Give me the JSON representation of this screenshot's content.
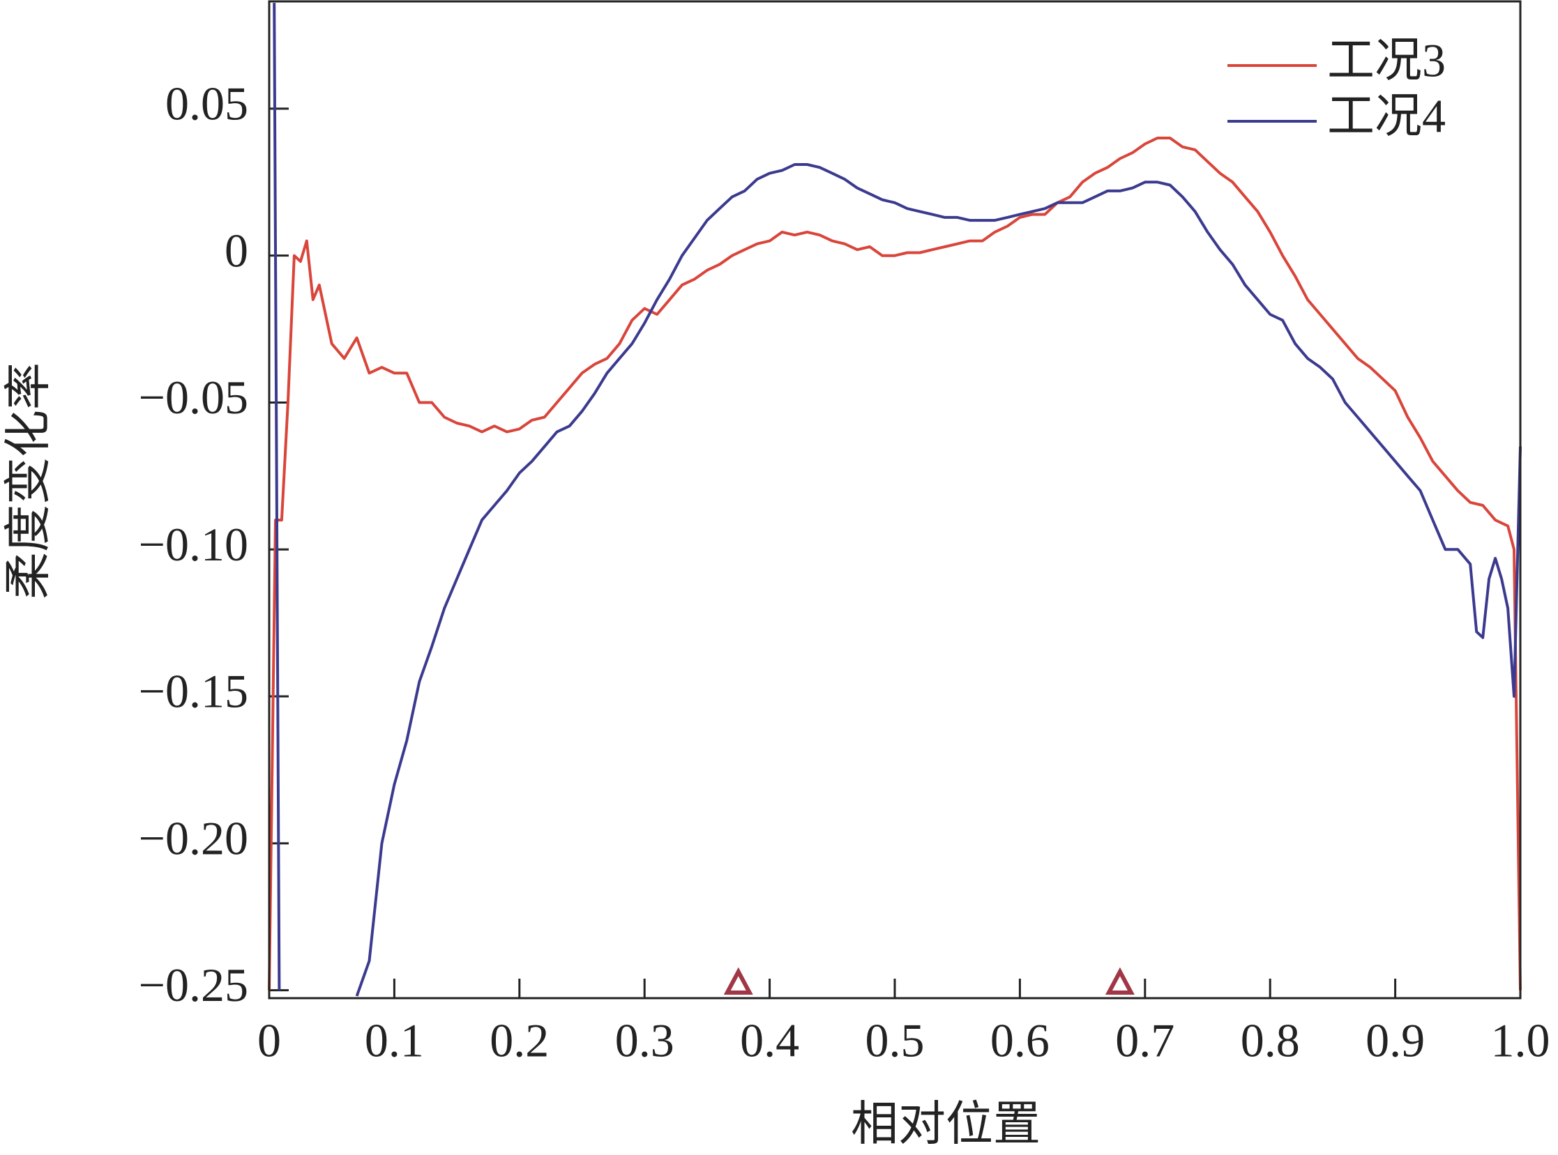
{
  "chart_data": {
    "type": "line",
    "x_label": "相对位置",
    "y_label": "柔度变化率",
    "xlim": [
      0,
      1
    ],
    "ylim": [
      -0.2527,
      0.0865
    ],
    "xticks": [
      0,
      0.1,
      0.2,
      0.3,
      0.4,
      0.5,
      0.6,
      0.7,
      0.8,
      0.9,
      {
        "value": 1,
        "label": "1.0"
      }
    ],
    "yticks": [
      {
        "value": -0.25,
        "label": "−0.25"
      },
      {
        "value": -0.2,
        "label": "−0.20"
      },
      {
        "value": -0.15,
        "label": "−0.15"
      },
      {
        "value": -0.1,
        "label": "−0.10"
      },
      {
        "value": -0.05,
        "label": "−0.05"
      },
      0,
      0.05
    ],
    "legend": "upper right",
    "markers_x": [
      0.375,
      0.68
    ],
    "marker_color": "#a03646",
    "series": [
      {
        "name": "工况3",
        "color": "#d9453a",
        "x": [
          0,
          0.005,
          0.01,
          0.015,
          0.02,
          0.025,
          0.03,
          0.035,
          0.04,
          0.05,
          0.06,
          0.07,
          0.08,
          0.09,
          0.1,
          0.11,
          0.12,
          0.13,
          0.14,
          0.15,
          0.16,
          0.17,
          0.18,
          0.19,
          0.2,
          0.21,
          0.22,
          0.23,
          0.24,
          0.25,
          0.26,
          0.27,
          0.28,
          0.29,
          0.3,
          0.31,
          0.32,
          0.33,
          0.34,
          0.35,
          0.36,
          0.37,
          0.38,
          0.39,
          0.4,
          0.41,
          0.42,
          0.43,
          0.44,
          0.45,
          0.46,
          0.47,
          0.48,
          0.49,
          0.5,
          0.51,
          0.52,
          0.53,
          0.54,
          0.55,
          0.56,
          0.57,
          0.58,
          0.59,
          0.6,
          0.61,
          0.62,
          0.63,
          0.64,
          0.65,
          0.66,
          0.67,
          0.68,
          0.69,
          0.7,
          0.71,
          0.72,
          0.73,
          0.74,
          0.75,
          0.76,
          0.77,
          0.78,
          0.79,
          0.8,
          0.81,
          0.82,
          0.83,
          0.84,
          0.85,
          0.86,
          0.87,
          0.88,
          0.89,
          0.9,
          0.91,
          0.92,
          0.93,
          0.94,
          0.95,
          0.96,
          0.97,
          0.98,
          0.99,
          0.995,
          1
        ],
        "values": [
          -0.25,
          -0.09,
          -0.09,
          -0.05,
          0,
          -0.002,
          0.005,
          -0.015,
          -0.01,
          -0.03,
          -0.035,
          -0.028,
          -0.04,
          -0.038,
          -0.04,
          -0.04,
          -0.05,
          -0.05,
          -0.055,
          -0.057,
          -0.058,
          -0.06,
          -0.058,
          -0.06,
          -0.059,
          -0.056,
          -0.055,
          -0.05,
          -0.045,
          -0.04,
          -0.037,
          -0.035,
          -0.03,
          -0.022,
          -0.018,
          -0.02,
          -0.015,
          -0.01,
          -0.008,
          -0.005,
          -0.003,
          0,
          0.002,
          0.004,
          0.005,
          0.008,
          0.007,
          0.008,
          0.007,
          0.005,
          0.004,
          0.002,
          0.003,
          0,
          0,
          0.001,
          0.001,
          0.002,
          0.003,
          0.004,
          0.005,
          0.005,
          0.008,
          0.01,
          0.013,
          0.014,
          0.014,
          0.018,
          0.02,
          0.025,
          0.028,
          0.03,
          0.033,
          0.035,
          0.038,
          0.04,
          0.04,
          0.037,
          0.036,
          0.032,
          0.028,
          0.025,
          0.02,
          0.015,
          0.008,
          0,
          -0.007,
          -0.015,
          -0.02,
          -0.025,
          -0.03,
          -0.035,
          -0.038,
          -0.042,
          -0.046,
          -0.055,
          -0.062,
          -0.07,
          -0.075,
          -0.08,
          -0.084,
          -0.085,
          -0.09,
          -0.092,
          -0.1,
          -0.25
        ]
      },
      {
        "name": "工况4",
        "color": "#3b3a8f",
        "x": [
          0.004,
          0.008,
          0.03,
          0.07,
          0.08,
          0.09,
          0.1,
          0.11,
          0.12,
          0.13,
          0.14,
          0.15,
          0.16,
          0.17,
          0.18,
          0.19,
          0.2,
          0.21,
          0.22,
          0.23,
          0.24,
          0.25,
          0.26,
          0.27,
          0.28,
          0.29,
          0.3,
          0.31,
          0.32,
          0.33,
          0.34,
          0.35,
          0.36,
          0.37,
          0.38,
          0.39,
          0.4,
          0.41,
          0.42,
          0.43,
          0.44,
          0.45,
          0.46,
          0.47,
          0.48,
          0.49,
          0.5,
          0.51,
          0.52,
          0.53,
          0.54,
          0.55,
          0.56,
          0.57,
          0.58,
          0.59,
          0.6,
          0.61,
          0.62,
          0.63,
          0.64,
          0.65,
          0.66,
          0.67,
          0.68,
          0.69,
          0.7,
          0.71,
          0.72,
          0.73,
          0.74,
          0.75,
          0.76,
          0.77,
          0.78,
          0.79,
          0.8,
          0.81,
          0.82,
          0.83,
          0.84,
          0.85,
          0.86,
          0.87,
          0.88,
          0.89,
          0.9,
          0.91,
          0.92,
          0.93,
          0.94,
          0.95,
          0.96,
          0.965,
          0.97,
          0.975,
          0.98,
          0.985,
          0.99,
          0.995,
          1
        ],
        "values": [
          0.086,
          -0.25,
          null,
          -0.252,
          -0.24,
          -0.2,
          -0.18,
          -0.165,
          -0.145,
          -0.133,
          -0.12,
          -0.11,
          -0.1,
          -0.09,
          -0.085,
          -0.08,
          -0.074,
          -0.07,
          -0.065,
          -0.06,
          -0.058,
          -0.053,
          -0.047,
          -0.04,
          -0.035,
          -0.03,
          -0.023,
          -0.015,
          -0.008,
          0,
          0.006,
          0.012,
          0.016,
          0.02,
          0.022,
          0.026,
          0.028,
          0.029,
          0.031,
          0.031,
          0.03,
          0.028,
          0.026,
          0.023,
          0.021,
          0.019,
          0.018,
          0.016,
          0.015,
          0.014,
          0.013,
          0.013,
          0.012,
          0.012,
          0.012,
          0.013,
          0.014,
          0.015,
          0.016,
          0.018,
          0.018,
          0.018,
          0.02,
          0.022,
          0.022,
          0.023,
          0.025,
          0.025,
          0.024,
          0.02,
          0.015,
          0.008,
          0.002,
          -0.003,
          -0.01,
          -0.015,
          -0.02,
          -0.022,
          -0.03,
          -0.035,
          -0.038,
          -0.042,
          -0.05,
          -0.055,
          -0.06,
          -0.065,
          -0.07,
          -0.075,
          -0.08,
          -0.09,
          -0.1,
          -0.1,
          -0.105,
          -0.128,
          -0.13,
          -0.11,
          -0.103,
          -0.11,
          -0.12,
          -0.15,
          -0.065
        ]
      }
    ]
  }
}
